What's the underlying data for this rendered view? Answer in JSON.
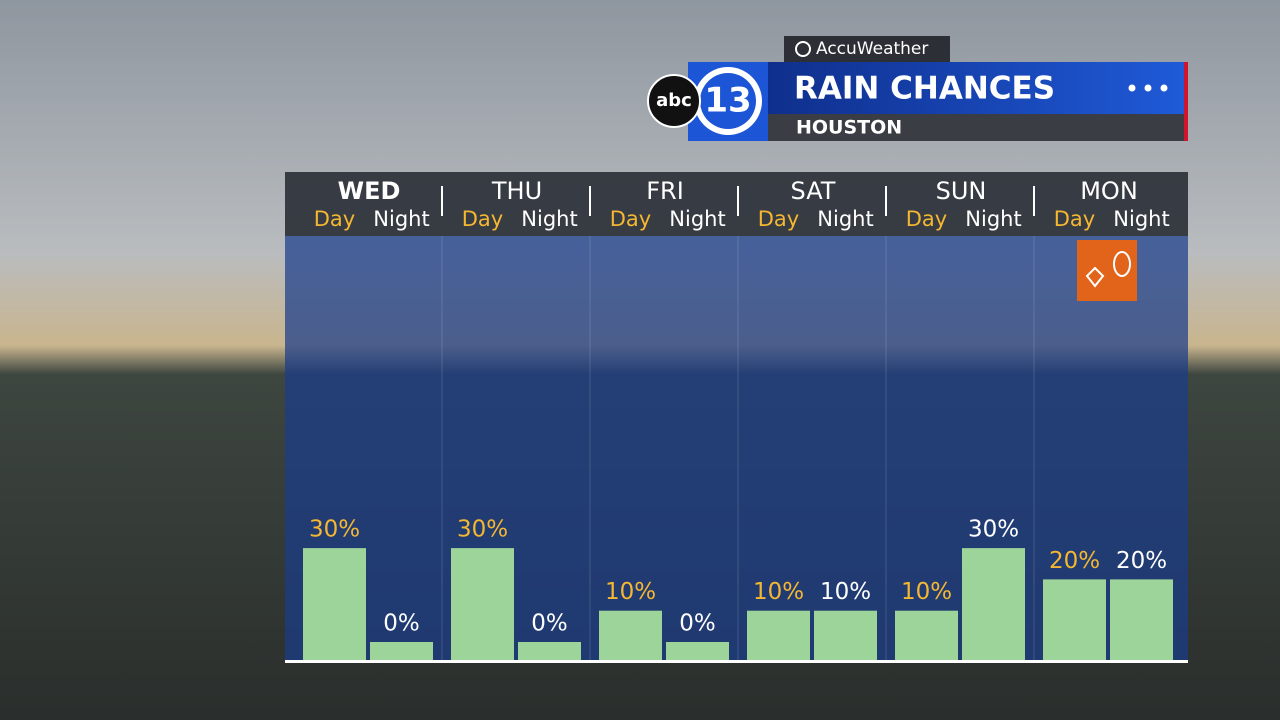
{
  "header": {
    "provider": "AccuWeather",
    "network": "abc",
    "channel": "13"
  },
  "chart_data": {
    "type": "bar",
    "title": "RAIN CHANCES",
    "subtitle": "HOUSTON",
    "categories": [
      "WED",
      "THU",
      "FRI",
      "SAT",
      "SUN",
      "MON"
    ],
    "series": [
      {
        "name": "Day",
        "color": "#9dd49a",
        "values": [
          30,
          30,
          10,
          10,
          10,
          20
        ],
        "value_labels": [
          "30%",
          "30%",
          "10%",
          "10%",
          "10%",
          "20%"
        ]
      },
      {
        "name": "Night",
        "color": "#9dd49a",
        "values": [
          0,
          0,
          0,
          10,
          30,
          20
        ],
        "value_labels": [
          "0%",
          "0%",
          "0%",
          "10%",
          "30%",
          "20%"
        ]
      }
    ]
  }
}
